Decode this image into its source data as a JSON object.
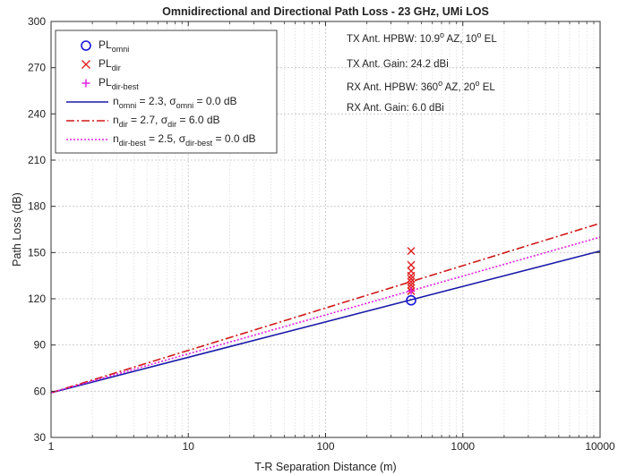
{
  "chart_data": {
    "type": "line",
    "title": "Omnidirectional and Directional Path Loss - 23 GHz, UMi LOS",
    "xlabel": "T-R Separation Distance (m)",
    "ylabel": "Path Loss (dB)",
    "xscale": "log",
    "xlim": [
      1,
      10000
    ],
    "ylim": [
      30,
      300
    ],
    "xticks": [
      1,
      10,
      100,
      1000,
      10000
    ],
    "xtick_labels": [
      "1",
      "10",
      "100",
      "1000",
      "10000"
    ],
    "yticks": [
      30,
      60,
      90,
      120,
      150,
      180,
      210,
      240,
      270,
      300
    ],
    "ytick_labels": [
      "30",
      "60",
      "90",
      "120",
      "150",
      "180",
      "210",
      "240",
      "270",
      "300"
    ],
    "grid": true,
    "legend_position": "top-left",
    "legend": [
      {
        "id": "pl-omni",
        "main": "PL",
        "sub": "omni",
        "marker": "circle",
        "color": "#1515d8"
      },
      {
        "id": "pl-dir",
        "main": "PL",
        "sub": "dir",
        "marker": "x",
        "color": "#e01b1b"
      },
      {
        "id": "pl-dir-best",
        "main": "PL",
        "sub": "dir-best",
        "marker": "plus",
        "color": "#e020e0"
      },
      {
        "id": "fit-omni",
        "parts": [
          [
            "n",
            ""
          ],
          [
            "omni",
            "sub"
          ],
          [
            " = 2.3, ",
            ""
          ],
          [
            "σ",
            ""
          ],
          [
            "omni",
            "sub"
          ],
          [
            " = 0.0 dB",
            ""
          ]
        ],
        "line": "solid",
        "color": "#1a1aa8"
      },
      {
        "id": "fit-dir",
        "parts": [
          [
            "n",
            ""
          ],
          [
            "dir",
            "sub"
          ],
          [
            " = 2.7, ",
            ""
          ],
          [
            "σ",
            ""
          ],
          [
            "dir",
            "sub"
          ],
          [
            " = 6.0 dB",
            ""
          ]
        ],
        "line": "dashdot",
        "color": "#d01818"
      },
      {
        "id": "fit-dir-best",
        "parts": [
          [
            "n",
            ""
          ],
          [
            "dir-best",
            "sub"
          ],
          [
            " = 2.5, ",
            ""
          ],
          [
            "σ",
            ""
          ],
          [
            "dir-best",
            "sub"
          ],
          [
            " = 0.0 dB",
            ""
          ]
        ],
        "line": "dotted",
        "color": "#e020e0"
      }
    ],
    "annotations": [
      {
        "id": "tx-hpbw",
        "parts": [
          [
            "TX Ant. HPBW: 10.9",
            ""
          ],
          [
            "o",
            "sup"
          ],
          [
            " AZ, 10",
            ""
          ],
          [
            "o",
            "sup"
          ],
          [
            " EL",
            ""
          ]
        ]
      },
      {
        "id": "tx-gain",
        "parts": [
          [
            "TX Ant. Gain: 24.2 dBi",
            ""
          ]
        ]
      },
      {
        "id": "rx-hpbw",
        "parts": [
          [
            "RX Ant. HPBW: 360",
            ""
          ],
          [
            "o",
            "sup"
          ],
          [
            " AZ, 20",
            ""
          ],
          [
            "o",
            "sup"
          ],
          [
            " EL",
            ""
          ]
        ]
      },
      {
        "id": "rx-gain",
        "parts": [
          [
            "RX Ant. Gain: 6.0 dBi",
            ""
          ]
        ]
      }
    ],
    "series": [
      {
        "name": "n_omni = 2.3, σ_omni = 0.0 dB",
        "kind": "line",
        "style": "solid",
        "color": "#1a1aa8",
        "x": [
          1,
          10000
        ],
        "y": [
          59,
          151
        ]
      },
      {
        "name": "n_dir = 2.7, σ_dir = 6.0 dB",
        "kind": "line",
        "style": "dashdot",
        "color": "#d01818",
        "x": [
          1,
          10000
        ],
        "y": [
          59,
          169
        ]
      },
      {
        "name": "n_dir-best = 2.5, σ_dir-best = 0.0 dB",
        "kind": "line",
        "style": "dotted",
        "color": "#e020e0",
        "x": [
          1,
          10000
        ],
        "y": [
          59,
          160
        ]
      },
      {
        "name": "PL_omni",
        "kind": "scatter",
        "marker": "circle",
        "color": "#1515d8",
        "x": [
          420
        ],
        "y": [
          119
        ]
      },
      {
        "name": "PL_dir",
        "kind": "scatter",
        "marker": "x",
        "color": "#e01b1b",
        "x": [
          420,
          420,
          420,
          420,
          420,
          420,
          420,
          420,
          420
        ],
        "y": [
          151,
          142,
          138,
          135,
          133,
          131,
          129,
          127,
          125
        ]
      },
      {
        "name": "PL_dir-best",
        "kind": "scatter",
        "marker": "plus",
        "color": "#e020e0",
        "x": [
          420
        ],
        "y": [
          125
        ]
      }
    ]
  }
}
